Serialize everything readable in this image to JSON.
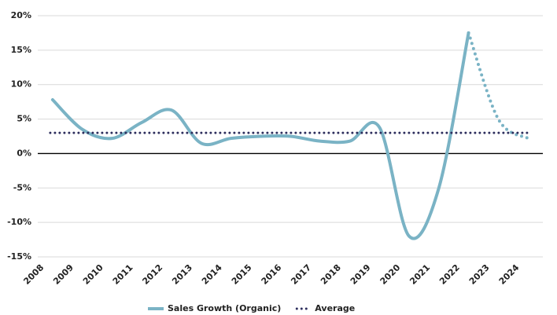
{
  "chart_data": {
    "type": "line",
    "categories": [
      "2008",
      "2009",
      "2010",
      "2011",
      "2012",
      "2013",
      "2014",
      "2015",
      "2016",
      "2017",
      "2018",
      "2019",
      "2020",
      "2021",
      "2022",
      "2023",
      "2024"
    ],
    "series": [
      {
        "name": "Sales Growth (Organic)",
        "color": "#7ab3c5",
        "values": [
          7.8,
          3.5,
          2.2,
          4.5,
          6.3,
          1.5,
          2.2,
          2.5,
          2.5,
          1.8,
          1.8,
          3.8,
          -12,
          -5,
          17.5,
          5,
          2.2
        ],
        "dotted_from": "2022"
      },
      {
        "name": "Average",
        "color": "#2e2f5e",
        "value": 3
      }
    ],
    "ylim": [
      -15,
      20
    ],
    "yticks": [
      {
        "value": -15,
        "label": "-15%"
      },
      {
        "value": -10,
        "label": "-10%"
      },
      {
        "value": -5,
        "label": "-5%"
      },
      {
        "value": 0,
        "label": "0%"
      },
      {
        "value": 5,
        "label": "5%"
      },
      {
        "value": 10,
        "label": "10%"
      },
      {
        "value": 15,
        "label": "15%"
      },
      {
        "value": 20,
        "label": "20%"
      }
    ],
    "grid": true
  }
}
